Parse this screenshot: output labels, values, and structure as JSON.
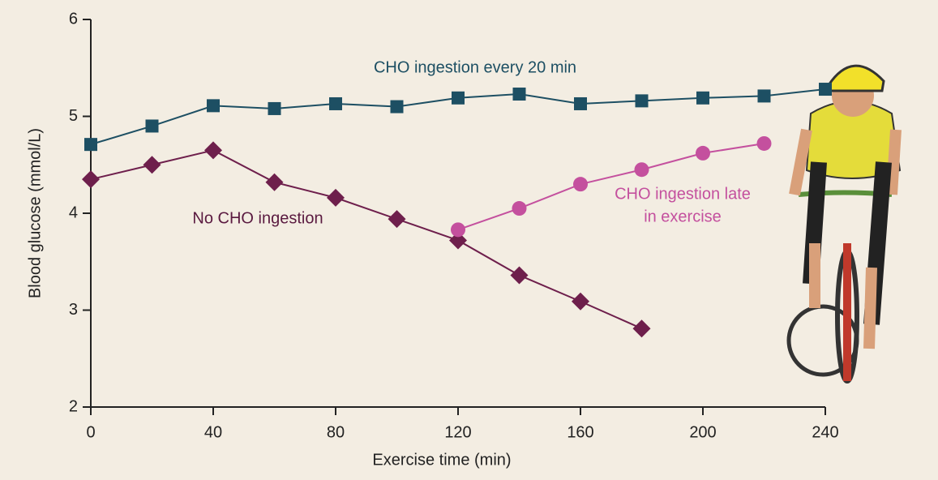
{
  "chart_data": {
    "type": "line",
    "xlabel": "Exercise time (min)",
    "ylabel": "Blood glucose (mmol/L)",
    "xlim": [
      0,
      240
    ],
    "xticks": [
      0,
      40,
      80,
      120,
      160,
      200,
      240
    ],
    "ylim": [
      2,
      6
    ],
    "yticks": [
      2,
      3,
      4,
      5,
      6
    ],
    "series": [
      {
        "name": "CHO ingestion every 20 min",
        "color": "#1d4f63",
        "marker": "square",
        "x": [
          0,
          20,
          40,
          60,
          80,
          100,
          120,
          140,
          160,
          180,
          200,
          220,
          240
        ],
        "values": [
          4.71,
          4.9,
          5.11,
          5.08,
          5.13,
          5.1,
          5.19,
          5.23,
          5.13,
          5.16,
          5.19,
          5.21,
          5.28
        ]
      },
      {
        "name": "No CHO ingestion",
        "color": "#6e1f4c",
        "marker": "diamond",
        "x": [
          0,
          20,
          40,
          60,
          80,
          100,
          120,
          140,
          160,
          180
        ],
        "values": [
          4.35,
          4.5,
          4.65,
          4.32,
          4.16,
          3.94,
          3.72,
          3.36,
          3.09,
          2.81
        ]
      },
      {
        "name": [
          "CHO ingestion late",
          "in exercise"
        ],
        "color": "#c4509e",
        "marker": "circle",
        "x": [
          120,
          140,
          160,
          180,
          200,
          220
        ],
        "values": [
          3.83,
          4.05,
          4.3,
          4.45,
          4.62,
          4.72
        ]
      }
    ]
  }
}
